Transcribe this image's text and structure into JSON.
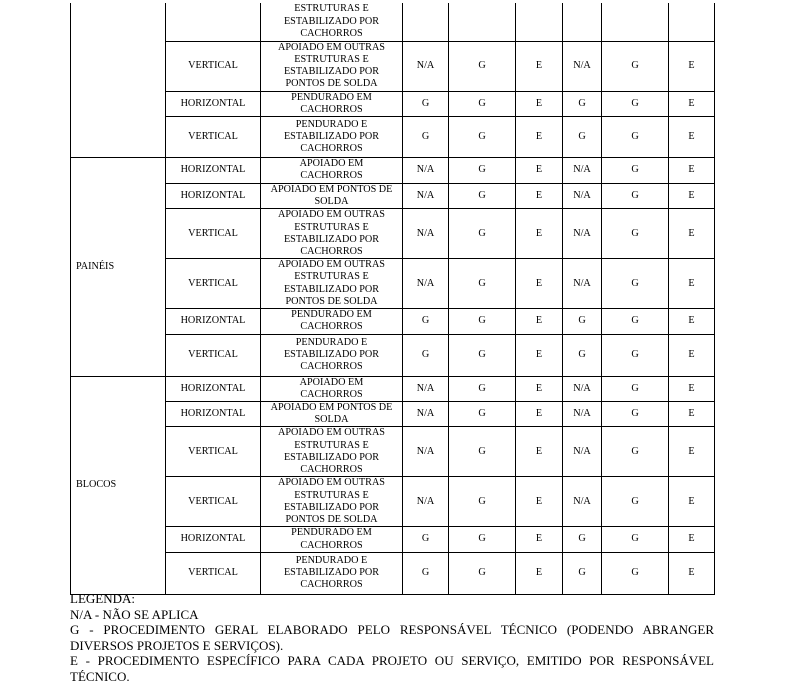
{
  "groups": [
    {
      "name": "",
      "rows": [
        {
          "orientation": "",
          "description": "ESTRUTURAS E\nESTABILIZADO POR\nCACHORROS",
          "values": [
            "",
            "",
            "",
            "",
            "",
            ""
          ]
        },
        {
          "orientation": "VERTICAL",
          "description": "APOIADO EM OUTRAS\nESTRUTURAS E\nESTABILIZADO POR\nPONTOS DE SOLDA",
          "values": [
            "N/A",
            "G",
            "E",
            "N/A",
            "G",
            "E"
          ]
        },
        {
          "orientation": "HORIZONTAL",
          "description": "PENDURADO EM\nCACHORROS",
          "values": [
            "G",
            "G",
            "E",
            "G",
            "G",
            "E"
          ]
        },
        {
          "orientation": "VERTICAL",
          "description": "PENDURADO E\nESTABILIZADO POR\nCACHORROS",
          "values": [
            "G",
            "G",
            "E",
            "G",
            "G",
            "E"
          ]
        }
      ]
    },
    {
      "name": "PAINÉIS",
      "rows": [
        {
          "orientation": "HORIZONTAL",
          "description": "APOIADO EM\nCACHORROS",
          "values": [
            "N/A",
            "G",
            "E",
            "N/A",
            "G",
            "E"
          ]
        },
        {
          "orientation": "HORIZONTAL",
          "description": "APOIADO EM PONTOS DE\nSOLDA",
          "values": [
            "N/A",
            "G",
            "E",
            "N/A",
            "G",
            "E"
          ]
        },
        {
          "orientation": "VERTICAL",
          "description": "APOIADO EM OUTRAS\nESTRUTURAS E\nESTABILIZADO POR\nCACHORROS",
          "values": [
            "N/A",
            "G",
            "E",
            "N/A",
            "G",
            "E"
          ]
        },
        {
          "orientation": "VERTICAL",
          "description": "APOIADO EM OUTRAS\nESTRUTURAS E\nESTABILIZADO POR\nPONTOS DE SOLDA",
          "values": [
            "N/A",
            "G",
            "E",
            "N/A",
            "G",
            "E"
          ]
        },
        {
          "orientation": "HORIZONTAL",
          "description": "PENDURADO EM\nCACHORROS",
          "values": [
            "G",
            "G",
            "E",
            "G",
            "G",
            "E"
          ]
        },
        {
          "orientation": "VERTICAL",
          "description": "PENDURADO E\nESTABILIZADO POR\nCACHORROS",
          "values": [
            "G",
            "G",
            "E",
            "G",
            "G",
            "E"
          ]
        }
      ]
    },
    {
      "name": "BLOCOS",
      "rows": [
        {
          "orientation": "HORIZONTAL",
          "description": "APOIADO EM\nCACHORROS",
          "values": [
            "N/A",
            "G",
            "E",
            "N/A",
            "G",
            "E"
          ]
        },
        {
          "orientation": "HORIZONTAL",
          "description": "APOIADO EM PONTOS DE\nSOLDA",
          "values": [
            "N/A",
            "G",
            "E",
            "N/A",
            "G",
            "E"
          ]
        },
        {
          "orientation": "VERTICAL",
          "description": "APOIADO EM OUTRAS\nESTRUTURAS E\nESTABILIZADO POR\nCACHORROS",
          "values": [
            "N/A",
            "G",
            "E",
            "N/A",
            "G",
            "E"
          ]
        },
        {
          "orientation": "VERTICAL",
          "description": "APOIADO EM OUTRAS\nESTRUTURAS E\nESTABILIZADO POR\nPONTOS DE SOLDA",
          "values": [
            "N/A",
            "G",
            "E",
            "N/A",
            "G",
            "E"
          ]
        },
        {
          "orientation": "HORIZONTAL",
          "description": "PENDURADO EM\nCACHORROS",
          "values": [
            "G",
            "G",
            "E",
            "G",
            "G",
            "E"
          ]
        },
        {
          "orientation": "VERTICAL",
          "description": "PENDURADO E\nESTABILIZADO POR\nCACHORROS",
          "values": [
            "G",
            "G",
            "E",
            "G",
            "G",
            "E"
          ]
        }
      ]
    }
  ],
  "legend": {
    "title": "LEGENDA:",
    "items": [
      "N/A - NÃO SE APLICA",
      "G - PROCEDIMENTO GERAL ELABORADO PELO RESPONSÁVEL TÉCNICO (PODENDO ABRANGER DIVERSOS PROJETOS E SERVIÇOS).",
      "E - PROCEDIMENTO ESPECÍFICO PARA CADA PROJETO OU SERVIÇO, EMITIDO POR RESPONSÁVEL TÉCNICO."
    ]
  }
}
